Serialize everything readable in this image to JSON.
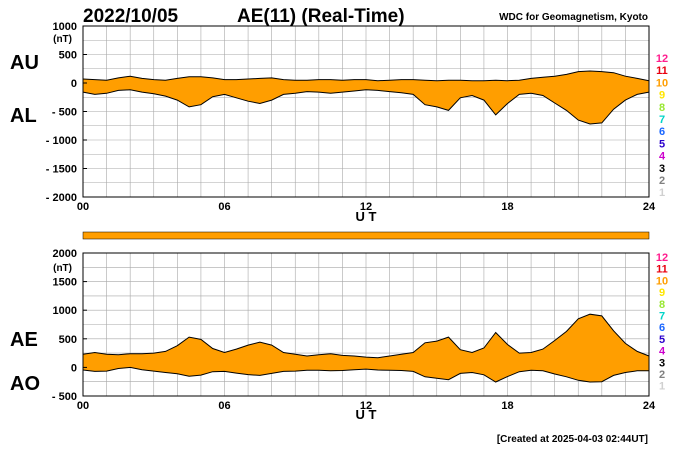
{
  "header": {
    "date": "2022/10/05",
    "title": "AE(11) (Real-Time)",
    "source": "WDC for Geomagnetism, Kyoto"
  },
  "footer": {
    "created": "[Created at 2025-04-03 02:44UT]"
  },
  "colors": {
    "fill": "#ff9e00",
    "line": "#000000",
    "grid": "#a8a8a8",
    "bar": "#ff9e00"
  },
  "station_legend": [
    {
      "label": "12",
      "color": "#ff1f8f"
    },
    {
      "label": "11",
      "color": "#e8000f"
    },
    {
      "label": "10",
      "color": "#ff9e00"
    },
    {
      "label": "9",
      "color": "#ffe600"
    },
    {
      "label": "8",
      "color": "#99e833"
    },
    {
      "label": "7",
      "color": "#00d4c8"
    },
    {
      "label": "6",
      "color": "#1a66ff"
    },
    {
      "label": "5",
      "color": "#2b00cc"
    },
    {
      "label": "4",
      "color": "#cc00cc"
    },
    {
      "label": "3",
      "color": "#000000"
    },
    {
      "label": "2",
      "color": "#808080"
    },
    {
      "label": "1",
      "color": "#d0d0d0"
    }
  ],
  "chart_data": [
    {
      "type": "area",
      "title": "AU / AL",
      "upper_label": "AU",
      "lower_label": "AL",
      "unit": "(nT)",
      "xlabel": "U T",
      "xlim": [
        0,
        24
      ],
      "x_ticks": [
        "00",
        "06",
        "12",
        "18",
        "24"
      ],
      "ylim": [
        -2000,
        1000
      ],
      "y_ticks": [
        "1000",
        "500",
        "0",
        "- 500",
        "- 1000",
        "- 1500",
        "- 2000"
      ],
      "grid": true,
      "x": [
        0,
        0.5,
        1,
        1.5,
        2,
        2.5,
        3,
        3.5,
        4,
        4.5,
        5,
        5.5,
        6,
        6.5,
        7,
        7.5,
        8,
        8.5,
        9,
        9.5,
        10,
        10.5,
        11,
        11.5,
        12,
        12.5,
        13,
        13.5,
        14,
        14.5,
        15,
        15.5,
        16,
        16.5,
        17,
        17.5,
        18,
        18.5,
        19,
        19.5,
        20,
        20.5,
        21,
        21.5,
        22,
        22.5,
        23,
        23.5,
        24
      ],
      "series": [
        {
          "name": "AU",
          "values": [
            70,
            60,
            50,
            90,
            120,
            80,
            60,
            50,
            80,
            110,
            110,
            90,
            60,
            60,
            70,
            80,
            90,
            60,
            50,
            50,
            60,
            60,
            50,
            60,
            60,
            40,
            50,
            60,
            60,
            50,
            40,
            50,
            50,
            40,
            40,
            50,
            40,
            50,
            80,
            100,
            120,
            150,
            200,
            210,
            200,
            180,
            120,
            80,
            40
          ]
        },
        {
          "name": "AL",
          "values": [
            -160,
            -200,
            -180,
            -130,
            -120,
            -160,
            -190,
            -230,
            -300,
            -420,
            -380,
            -240,
            -200,
            -260,
            -320,
            -360,
            -300,
            -200,
            -180,
            -150,
            -160,
            -180,
            -160,
            -140,
            -120,
            -130,
            -150,
            -170,
            -200,
            -380,
            -420,
            -480,
            -260,
            -220,
            -300,
            -560,
            -360,
            -200,
            -180,
            -220,
            -350,
            -480,
            -650,
            -720,
            -700,
            -460,
            -300,
            -200,
            -160
          ]
        }
      ]
    },
    {
      "type": "area",
      "title": "AE / AO",
      "upper_label": "AE",
      "lower_label": "AO",
      "unit": "(nT)",
      "xlabel": "U T",
      "xlim": [
        0,
        24
      ],
      "x_ticks": [
        "00",
        "06",
        "12",
        "18",
        "24"
      ],
      "ylim": [
        -500,
        2000
      ],
      "y_ticks": [
        "2000",
        "1500",
        "1000",
        "500",
        "0",
        "- 500"
      ],
      "grid": true,
      "x": [
        0,
        0.5,
        1,
        1.5,
        2,
        2.5,
        3,
        3.5,
        4,
        4.5,
        5,
        5.5,
        6,
        6.5,
        7,
        7.5,
        8,
        8.5,
        9,
        9.5,
        10,
        10.5,
        11,
        11.5,
        12,
        12.5,
        13,
        13.5,
        14,
        14.5,
        15,
        15.5,
        16,
        16.5,
        17,
        17.5,
        18,
        18.5,
        19,
        19.5,
        20,
        20.5,
        21,
        21.5,
        22,
        22.5,
        23,
        23.5,
        24
      ],
      "series": [
        {
          "name": "AE",
          "values": [
            230,
            260,
            230,
            220,
            240,
            240,
            250,
            280,
            380,
            530,
            490,
            330,
            260,
            320,
            390,
            440,
            390,
            260,
            230,
            200,
            220,
            240,
            210,
            200,
            180,
            170,
            200,
            230,
            260,
            430,
            460,
            530,
            310,
            260,
            340,
            610,
            400,
            250,
            260,
            320,
            470,
            630,
            850,
            930,
            900,
            640,
            420,
            280,
            200
          ]
        },
        {
          "name": "AO",
          "values": [
            -45,
            -70,
            -65,
            -20,
            0,
            -40,
            -65,
            -90,
            -110,
            -155,
            -135,
            -75,
            -70,
            -100,
            -125,
            -140,
            -105,
            -70,
            -65,
            -50,
            -50,
            -60,
            -55,
            -40,
            -30,
            -45,
            -50,
            -55,
            -70,
            -165,
            -190,
            -215,
            -105,
            -90,
            -130,
            -255,
            -160,
            -75,
            -50,
            -60,
            -115,
            -165,
            -225,
            -255,
            -250,
            -140,
            -90,
            -60,
            -60
          ]
        }
      ]
    }
  ]
}
